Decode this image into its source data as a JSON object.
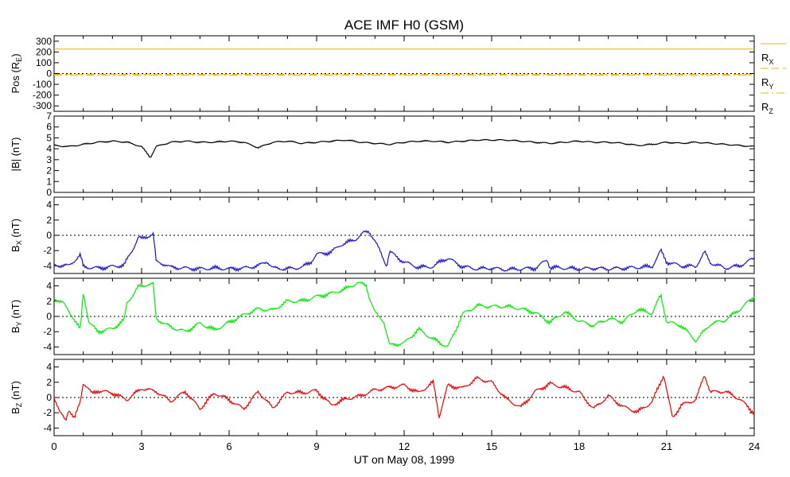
{
  "title": "ACE IMF H0 (GSM)",
  "xlabel": "UT on May 08, 1999",
  "colors": {
    "frame": "#000000",
    "position": "#f0b400",
    "bmag": "#000000",
    "bx": "#1a10d8",
    "by": "#00ee00",
    "bz": "#ee0000"
  },
  "chart_data": [
    {
      "type": "line",
      "panel": "position",
      "ylabel": "Pos (R",
      "ylabel_sub": "E",
      "ylabel_end": ")",
      "ylim": [
        -350,
        350
      ],
      "yticks": [
        300,
        200,
        100,
        0,
        -100,
        -200,
        -300
      ],
      "zero_line": true,
      "legend_position": "right",
      "series": [
        {
          "name": "R",
          "sub": "X",
          "dash": "solid",
          "x": [
            0,
            24
          ],
          "values": [
            227,
            227
          ]
        },
        {
          "name": "R",
          "sub": "Y",
          "dash": "dashed",
          "x": [
            0,
            24
          ],
          "values": [
            -8,
            -8
          ]
        },
        {
          "name": "R",
          "sub": "Z",
          "dash": "dashdot",
          "x": [
            0,
            24
          ],
          "values": [
            -15,
            -15
          ]
        }
      ]
    },
    {
      "type": "line",
      "panel": "bmag",
      "ylabel": "|B| (nT)",
      "ylim": [
        0,
        7
      ],
      "yticks": [
        7,
        6,
        5,
        4,
        3,
        2,
        1,
        0
      ],
      "zero_line": false,
      "series": [
        {
          "name": "|B|",
          "x": [
            0,
            0.5,
            1.0,
            1.5,
            2.0,
            2.5,
            3.0,
            3.3,
            3.5,
            4.0,
            4.5,
            5.0,
            5.5,
            6.0,
            6.5,
            7.0,
            7.5,
            8.0,
            8.5,
            9.0,
            9.5,
            10.0,
            10.5,
            11.0,
            11.5,
            12.0,
            12.5,
            13.0,
            13.5,
            14.0,
            14.5,
            15.0,
            15.5,
            16.0,
            16.5,
            17.0,
            17.5,
            18.0,
            18.5,
            19.0,
            19.5,
            20.0,
            20.5,
            21.0,
            21.5,
            22.0,
            22.5,
            23.0,
            23.5,
            24.0
          ],
          "values": [
            4.3,
            4.2,
            4.4,
            4.6,
            4.7,
            4.6,
            4.2,
            3.2,
            4.2,
            4.6,
            4.7,
            4.6,
            4.6,
            4.7,
            4.6,
            4.1,
            4.6,
            4.7,
            4.5,
            4.6,
            4.7,
            4.8,
            4.6,
            4.5,
            4.4,
            4.6,
            4.7,
            4.7,
            4.6,
            4.7,
            4.8,
            4.8,
            4.8,
            4.7,
            4.6,
            4.5,
            4.6,
            4.7,
            4.6,
            4.6,
            4.5,
            4.3,
            4.4,
            4.6,
            4.5,
            4.6,
            4.5,
            4.4,
            4.3,
            4.2
          ]
        }
      ]
    },
    {
      "type": "line",
      "panel": "bx",
      "ylabel": "B",
      "ylabel_sub": "X",
      "ylabel_end": " (nT)",
      "ylim": [
        -5,
        5
      ],
      "yticks": [
        4,
        2,
        0,
        -2,
        -4
      ],
      "zero_line": true,
      "series": [
        {
          "name": "B_X",
          "x": [
            0,
            0.5,
            0.9,
            1.0,
            1.2,
            1.5,
            2.0,
            2.4,
            2.6,
            2.7,
            2.9,
            3.0,
            3.4,
            3.5,
            3.8,
            4.0,
            4.5,
            5.0,
            5.5,
            6.0,
            6.5,
            7.0,
            7.3,
            7.5,
            8.0,
            8.5,
            8.8,
            9.0,
            9.5,
            9.8,
            10.0,
            10.3,
            10.6,
            10.8,
            11.0,
            11.4,
            11.5,
            11.8,
            12.0,
            12.5,
            13.0,
            13.3,
            13.5,
            14.0,
            14.5,
            15.0,
            15.5,
            16.0,
            16.5,
            16.9,
            17.0,
            17.5,
            18.0,
            18.5,
            19.0,
            19.5,
            20.0,
            20.5,
            20.8,
            21.0,
            21.5,
            22.0,
            22.3,
            22.5,
            23.0,
            23.5,
            24.0
          ],
          "values": [
            -3.9,
            -4.0,
            -2.6,
            -4.1,
            -4.2,
            -4.3,
            -4.1,
            -3.9,
            -2.5,
            -1.8,
            -0.2,
            -0.5,
            0.2,
            -3.5,
            -3.8,
            -4.2,
            -4.3,
            -4.4,
            -4.3,
            -4.4,
            -4.3,
            -4.0,
            -3.4,
            -4.3,
            -4.4,
            -4.2,
            -3.5,
            -2.5,
            -2.2,
            -1.3,
            -1.0,
            -0.6,
            0.3,
            0.5,
            -0.7,
            -4.0,
            -2.1,
            -3.0,
            -3.5,
            -4.2,
            -4.1,
            -3.3,
            -3.0,
            -4.1,
            -4.4,
            -4.3,
            -4.5,
            -4.4,
            -4.3,
            -3.2,
            -4.2,
            -4.3,
            -4.4,
            -4.3,
            -4.4,
            -4.3,
            -4.2,
            -4.1,
            -2.0,
            -3.5,
            -4.0,
            -4.1,
            -2.2,
            -3.6,
            -4.3,
            -4.0,
            -3.0
          ]
        }
      ]
    },
    {
      "type": "line",
      "panel": "by",
      "ylabel": "B",
      "ylabel_sub": "Y",
      "ylabel_end": " (nT)",
      "ylim": [
        -5,
        5
      ],
      "yticks": [
        4,
        2,
        0,
        -2,
        -4
      ],
      "zero_line": true,
      "series": [
        {
          "name": "B_Y",
          "x": [
            0,
            0.3,
            0.6,
            0.9,
            1.0,
            1.2,
            1.5,
            2.0,
            2.4,
            2.5,
            2.7,
            2.9,
            3.2,
            3.4,
            3.5,
            4.0,
            4.5,
            5.0,
            5.5,
            6.0,
            6.5,
            7.0,
            7.5,
            8.0,
            8.5,
            9.0,
            9.5,
            10.0,
            10.4,
            10.7,
            10.8,
            11.0,
            11.3,
            11.5,
            11.8,
            12.0,
            12.5,
            13.0,
            13.5,
            13.8,
            14.0,
            14.5,
            15.0,
            15.5,
            16.0,
            16.5,
            17.0,
            17.5,
            18.0,
            18.5,
            19.0,
            19.5,
            20.0,
            20.5,
            20.8,
            21.0,
            21.5,
            22.0,
            22.5,
            23.0,
            23.5,
            24.0
          ],
          "values": [
            2.4,
            1.8,
            0.2,
            -1.8,
            3.2,
            -0.8,
            -2.0,
            -1.6,
            -0.5,
            1.8,
            2.8,
            3.9,
            4.2,
            4.2,
            -0.3,
            -1.4,
            -2.0,
            -0.9,
            -1.8,
            -0.8,
            0.2,
            1.0,
            0.8,
            2.0,
            2.0,
            2.6,
            3.0,
            3.6,
            4.4,
            4.1,
            2.6,
            0.5,
            -0.6,
            -3.8,
            -3.6,
            -3.5,
            -1.7,
            -3.0,
            -4.0,
            -1.5,
            0.3,
            1.4,
            1.3,
            1.3,
            1.0,
            0.5,
            -0.8,
            0.6,
            -0.6,
            -1.2,
            -0.3,
            -0.7,
            0.9,
            0.4,
            2.8,
            -0.7,
            -1.2,
            -3.2,
            -1.0,
            -0.5,
            0.9,
            2.6
          ]
        }
      ]
    },
    {
      "type": "line",
      "panel": "bz",
      "ylabel": "B",
      "ylabel_sub": "Z",
      "ylabel_end": " (nT)",
      "ylim": [
        -5,
        5
      ],
      "yticks": [
        4,
        2,
        0,
        -2,
        -4
      ],
      "zero_line": true,
      "xticks": [
        0,
        3,
        6,
        9,
        12,
        15,
        18,
        21,
        24
      ],
      "series": [
        {
          "name": "B_Z",
          "x": [
            0,
            0.2,
            0.4,
            0.5,
            0.7,
            0.9,
            1.0,
            1.3,
            1.5,
            2.0,
            2.5,
            3.0,
            3.5,
            4.0,
            4.5,
            5.0,
            5.5,
            6.0,
            6.5,
            7.0,
            7.5,
            8.0,
            8.5,
            9.0,
            9.5,
            10.0,
            10.5,
            11.0,
            11.5,
            12.0,
            12.5,
            13.0,
            13.2,
            13.5,
            14.0,
            14.5,
            15.0,
            15.5,
            16.0,
            16.5,
            17.0,
            17.5,
            18.0,
            18.5,
            19.0,
            19.5,
            20.0,
            20.5,
            20.9,
            21.0,
            21.2,
            21.5,
            22.0,
            22.3,
            22.5,
            23.0,
            23.5,
            24.0
          ],
          "values": [
            0.1,
            -2.0,
            -3.0,
            -1.5,
            -2.8,
            -0.5,
            2.0,
            0.5,
            0.9,
            0.6,
            -0.3,
            1.2,
            0.8,
            -0.5,
            0.8,
            -1.5,
            0.6,
            -0.3,
            -1.5,
            0.8,
            -1.4,
            0.7,
            0.6,
            0.9,
            -1.0,
            -0.2,
            0.2,
            1.0,
            1.3,
            1.6,
            0.6,
            2.0,
            -2.5,
            1.6,
            1.2,
            2.5,
            2.0,
            -0.2,
            -1.3,
            0.8,
            1.8,
            1.3,
            0.7,
            -1.5,
            0.2,
            -1.2,
            -1.9,
            -0.6,
            3.0,
            1.0,
            -2.7,
            -1.0,
            -0.3,
            3.0,
            0.7,
            0.8,
            -0.2,
            -2.0
          ]
        }
      ]
    }
  ]
}
